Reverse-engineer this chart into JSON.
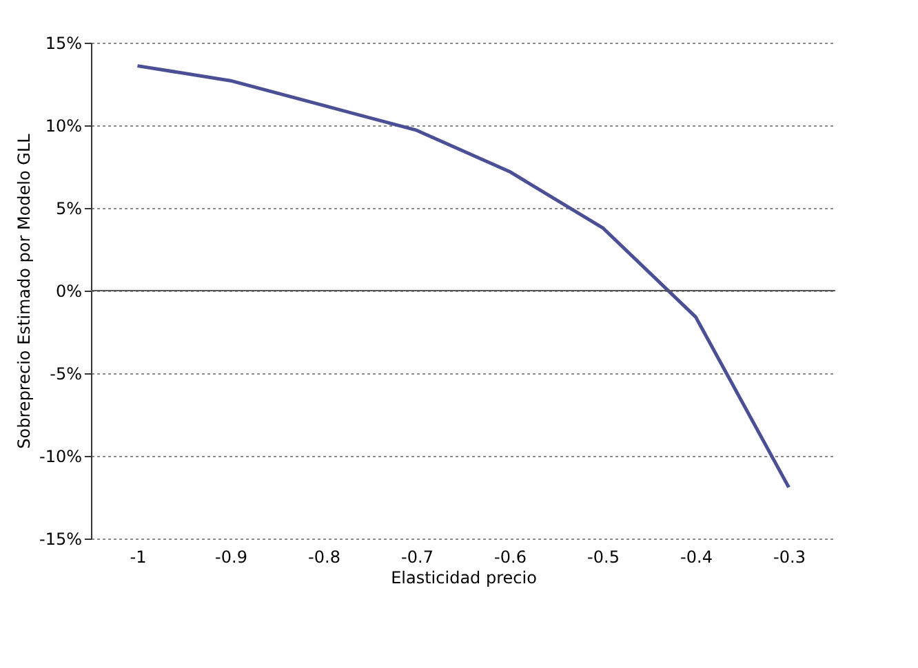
{
  "chart_data": {
    "type": "line",
    "xlabel": "Elasticidad precio",
    "ylabel": "Sobreprecio Estimado por Modelo GLL",
    "categories": [
      "-1",
      "-0.9",
      "-0.8",
      "-0.7",
      "-0.6",
      "-0.5",
      "-0.4",
      "-0.3"
    ],
    "series": [
      {
        "color": "#4a4f96",
        "values": [
          13.6,
          12.7,
          11.2,
          9.7,
          7.2,
          3.8,
          -1.6,
          -11.9
        ]
      }
    ],
    "ylim": [
      -15,
      15
    ],
    "yticks": [
      {
        "value": -15,
        "label": "-15%"
      },
      {
        "value": -10,
        "label": "-10%"
      },
      {
        "value": -5,
        "label": "-5%"
      },
      {
        "value": 0,
        "label": "0%"
      },
      {
        "value": 5,
        "label": "5%"
      },
      {
        "value": 10,
        "label": "10%"
      },
      {
        "value": 15,
        "label": "15%"
      }
    ],
    "ref_lines": [
      {
        "axis": "y",
        "value": 0,
        "color": "#555555"
      }
    ],
    "grid": "y",
    "marker": "none",
    "line_style": "solid"
  }
}
